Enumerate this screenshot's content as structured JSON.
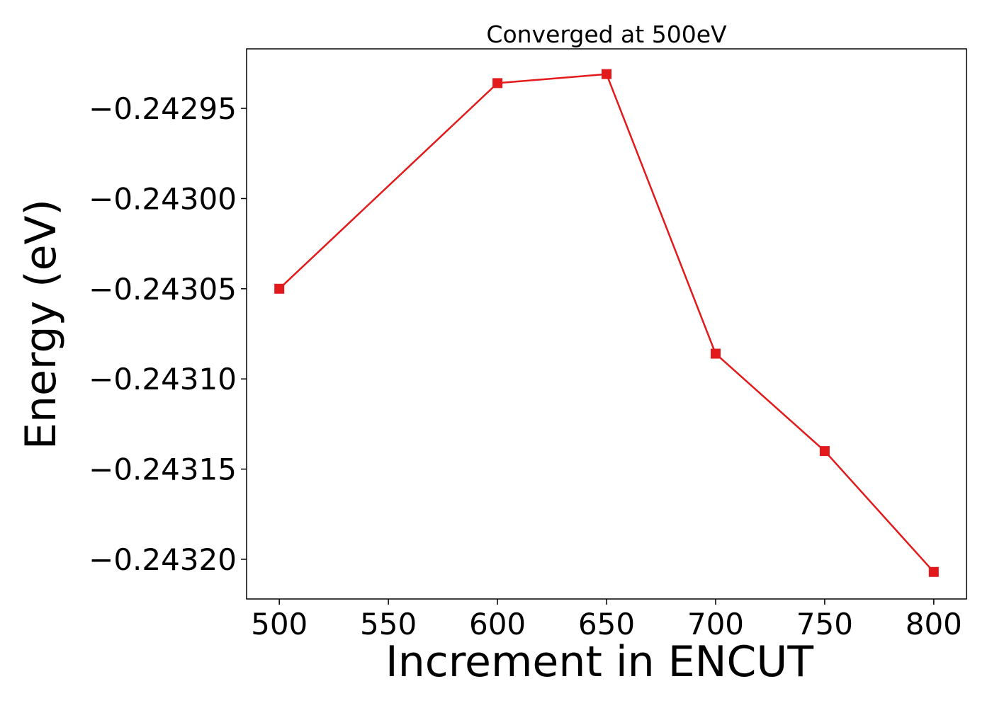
{
  "chart_data": {
    "type": "line",
    "title": "Converged at 500eV",
    "xlabel": "Increment in ENCUT",
    "ylabel": "Energy (eV)",
    "x": [
      500,
      600,
      650,
      700,
      750,
      800
    ],
    "series": [
      {
        "values": [
          -0.24305,
          -0.242936,
          -0.242931,
          -0.243086,
          -0.24314,
          -0.243207
        ],
        "color": "#e31a1c",
        "marker": "square"
      }
    ],
    "xticks": [
      500,
      550,
      600,
      650,
      700,
      750,
      800
    ],
    "xtick_labels": [
      "500",
      "550",
      "600",
      "650",
      "700",
      "750",
      "800"
    ],
    "yticks": [
      -0.24295,
      -0.243,
      -0.24305,
      -0.2431,
      -0.24315,
      -0.2432
    ],
    "ytick_labels": [
      "−0.24295",
      "−0.24300",
      "−0.24305",
      "−0.24310",
      "−0.24315",
      "−0.24320"
    ],
    "xlim": [
      485,
      815
    ],
    "ylim": [
      -0.243222,
      -0.242917
    ],
    "grid": false,
    "legend": "none"
  }
}
